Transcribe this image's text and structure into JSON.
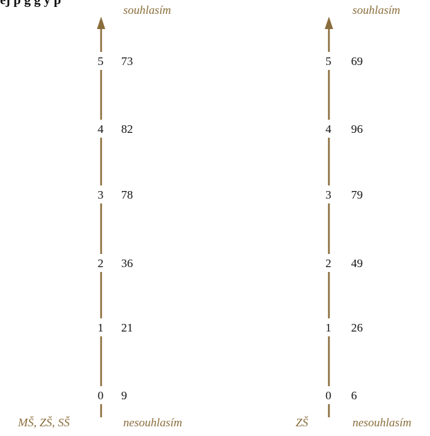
{
  "header_text": "ej     p   g g   y  p",
  "colors": {
    "axis": "#8a6d3b",
    "text": "#111111",
    "label": "#8a6d3b"
  },
  "scales": [
    {
      "group_label": "MŠ, ZŠ, SŠ",
      "top_label": "souhlasím",
      "bottom_label": "nesouhlasím",
      "rows": [
        {
          "level": "5",
          "count": "73"
        },
        {
          "level": "4",
          "count": "82"
        },
        {
          "level": "3",
          "count": "78"
        },
        {
          "level": "2",
          "count": "36"
        },
        {
          "level": "1",
          "count": "21"
        },
        {
          "level": "0",
          "count": "9"
        }
      ]
    },
    {
      "group_label": "ZŠ",
      "top_label": "souhlasím",
      "bottom_label": "nesouhlasím",
      "rows": [
        {
          "level": "5",
          "count": "69"
        },
        {
          "level": "4",
          "count": "96"
        },
        {
          "level": "3",
          "count": "79"
        },
        {
          "level": "2",
          "count": "49"
        },
        {
          "level": "1",
          "count": "26"
        },
        {
          "level": "0",
          "count": "6"
        }
      ]
    }
  ]
}
